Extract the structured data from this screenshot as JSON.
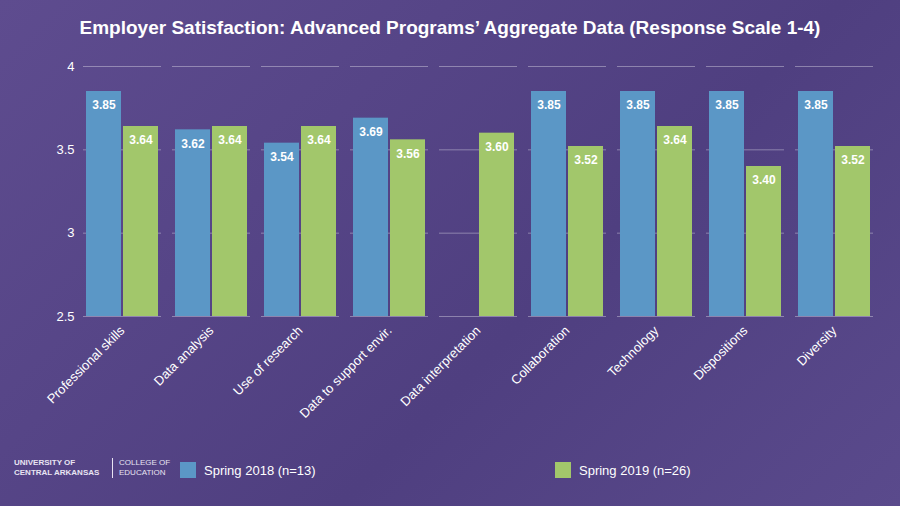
{
  "chart_data": {
    "type": "bar",
    "title": "Employer Satisfaction: Advanced Programs’ Aggregate Data (Response Scale 1-4)",
    "categories": [
      "Professional skills",
      "Data analysis",
      "Use of research",
      "Data to support envir.",
      "Data interpretation",
      "Collaboration",
      "Technology",
      "Dispositions",
      "Diversity"
    ],
    "series": [
      {
        "name": "Spring 2018 (n=13)",
        "color": "#5b97c6",
        "values": [
          3.85,
          3.62,
          3.54,
          3.69,
          null,
          3.85,
          3.85,
          3.85,
          3.85
        ],
        "value_labels": [
          "3.85",
          "3.62",
          "3.54",
          "3.69",
          null,
          "3.85",
          "3.85",
          "3.85",
          "3.85"
        ]
      },
      {
        "name": "Spring 2019 (n=26)",
        "color": "#a2c76b",
        "values": [
          3.64,
          3.64,
          3.64,
          3.56,
          3.6,
          3.52,
          3.64,
          3.4,
          3.52
        ],
        "value_labels": [
          "3.64",
          "3.64",
          "3.64",
          "3.56",
          "3.60",
          "3.52",
          "3.64",
          "3.40",
          "3.52"
        ]
      }
    ],
    "ylim": [
      2.5,
      4
    ],
    "yticks": [
      2.5,
      3,
      3.5,
      4
    ],
    "grid": true,
    "data_labels": true,
    "legend": "bottom",
    "annotations": [
      "UNIVERSITY OF CENTRAL ARKANSAS",
      "COLLEGE OF EDUCATION"
    ]
  }
}
